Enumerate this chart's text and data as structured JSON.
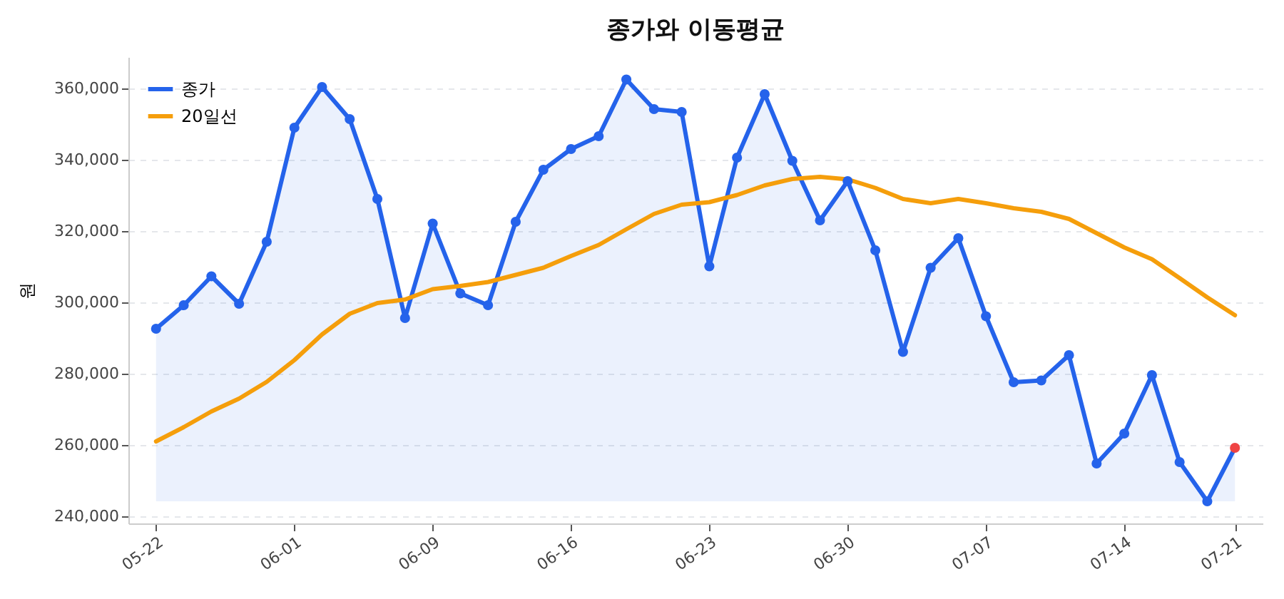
{
  "chart_data": {
    "type": "line",
    "title": "종가와 이동평균",
    "ylabel": "원",
    "categories": [
      "05-22",
      null,
      null,
      null,
      null,
      "06-01",
      null,
      null,
      null,
      null,
      "06-09",
      null,
      null,
      null,
      null,
      "06-16",
      null,
      null,
      null,
      null,
      "06-23",
      null,
      null,
      null,
      null,
      "06-30",
      null,
      null,
      null,
      null,
      "07-07",
      null,
      null,
      null,
      null,
      "07-14",
      null,
      null,
      null,
      "07-21"
    ],
    "series": [
      {
        "name": "종가",
        "type": "area",
        "marker": "circle",
        "color": "#2563eb",
        "colors": [
          "#2563eb",
          "#2563eb",
          "#2563eb",
          "#2563eb",
          "#2563eb",
          "#2563eb",
          "#2563eb",
          "#2563eb",
          "#2563eb",
          "#2563eb",
          "#2563eb",
          "#2563eb",
          "#2563eb",
          "#2563eb",
          "#2563eb",
          "#2563eb",
          "#2563eb",
          "#2563eb",
          "#2563eb",
          "#2563eb",
          "#2563eb",
          "#2563eb",
          "#2563eb",
          "#2563eb",
          "#2563eb",
          "#2563eb",
          "#2563eb",
          "#2563eb",
          "#2563eb",
          "#2563eb",
          "#2563eb",
          "#2563eb",
          "#2563eb",
          "#2563eb",
          "#2563eb",
          "#2563eb",
          "#2563eb",
          "#2563eb",
          "#2563eb",
          "#ef4444"
        ],
        "values": [
          292500,
          299100,
          307200,
          299500,
          316900,
          348900,
          360300,
          351300,
          328900,
          295500,
          322000,
          302400,
          299100,
          322500,
          337100,
          342900,
          346500,
          362400,
          354100,
          353300,
          310000,
          340500,
          358300,
          339600,
          322900,
          333900,
          314500,
          286000,
          309600,
          317900,
          296000,
          277500,
          278000,
          285100,
          254700,
          263100,
          279500,
          255100,
          244100,
          259100
        ]
      },
      {
        "name": "20일선",
        "marker": "none",
        "color": "#f59e0b",
        "values": [
          260900,
          264900,
          269300,
          272900,
          277600,
          283700,
          290900,
          296700,
          299700,
          300700,
          303600,
          304500,
          305600,
          307600,
          309600,
          312900,
          316000,
          320400,
          324700,
          327300,
          328000,
          330000,
          332700,
          334500,
          335100,
          334400,
          332000,
          328900,
          327700,
          328900,
          327700,
          326300,
          325300,
          323300,
          319300,
          315300,
          312000,
          306700,
          301300,
          296300
        ]
      }
    ],
    "ylim": [
      237900,
      368700
    ],
    "yticks": [
      {
        "value": 240000,
        "label": "240,000"
      },
      {
        "value": 260000,
        "label": "260,000"
      },
      {
        "value": 280000,
        "label": "280,000"
      },
      {
        "value": 300000,
        "label": "300,000"
      },
      {
        "value": 320000,
        "label": "320,000"
      },
      {
        "value": 340000,
        "label": "340,000"
      },
      {
        "value": 360000,
        "label": "360,000"
      }
    ],
    "grid": "y",
    "legend": "top left"
  }
}
